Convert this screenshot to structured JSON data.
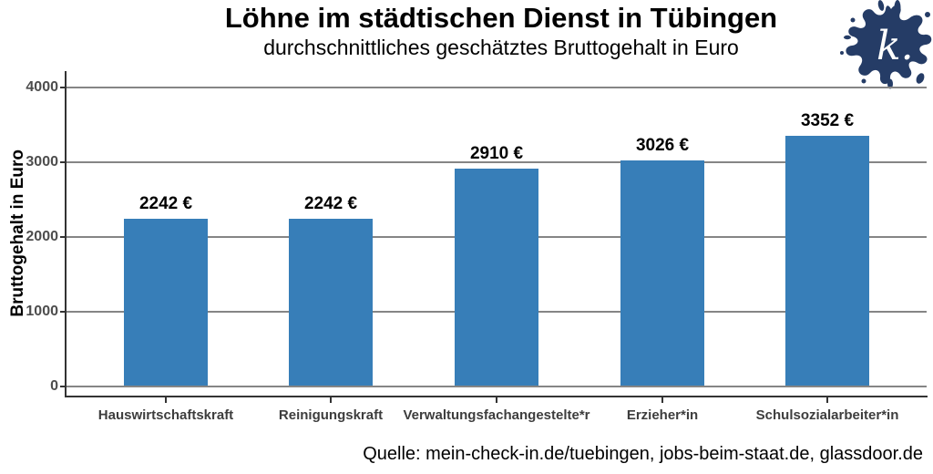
{
  "header": {
    "title": "Löhne im städtischen Dienst in Tübingen",
    "subtitle": "durchschnittliches geschätztes Bruttogehalt in Euro"
  },
  "logo": {
    "label": "k.",
    "color": "#253C66"
  },
  "chart_data": {
    "type": "bar",
    "title": "Löhne im städtischen Dienst in Tübingen",
    "subtitle": "durchschnittliches geschätztes Bruttogehalt in Euro",
    "categories": [
      "Hauswirtschaftskraft",
      "Reinigungskraft",
      "Verwaltungsfachangestelte*r",
      "Erzieher*in",
      "Schulsozialarbeiter*in"
    ],
    "values": [
      2242,
      2242,
      2910,
      3026,
      3352
    ],
    "value_labels": [
      "2242 €",
      "2242 €",
      "2910 €",
      "3026 €",
      "3352 €"
    ],
    "xlabel": "",
    "ylabel": "Bruttogehalt in Euro",
    "ylim": [
      0,
      4000
    ],
    "yticks": [
      0,
      1000,
      2000,
      3000,
      4000
    ],
    "grid": "horizontal gridlines",
    "legend": "none",
    "bar_color": "#377EB8",
    "gridline_color": "#858585",
    "axis_color": "#333333",
    "tick_label_color": "#4d4d4d"
  },
  "footer": {
    "source": "Quelle: mein-check-in.de/tuebingen, jobs-beim-staat.de, glassdoor.de"
  }
}
